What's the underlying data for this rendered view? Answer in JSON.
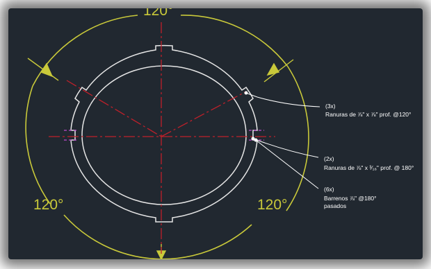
{
  "drawing": {
    "angle_labels": {
      "top": "120°",
      "left": "120°",
      "right": "120°"
    },
    "annotations": [
      {
        "count": "(3x)",
        "text": "Ranuras de ⅞\" x ⅞\" prof. @120°"
      },
      {
        "count": "(2x)",
        "text": "Ranuras de ⅞\" x ³⁄₁₆\" prof. @ 180°"
      },
      {
        "count": "(6x)",
        "text": "Barrenos ⅞\" @180°",
        "text2": "pasados"
      }
    ],
    "colors": {
      "background": "#212830",
      "outline": "#e6e6e6",
      "centerline": "#c0202a",
      "dimension": "#c9c93a",
      "hidden": "#c04ad0",
      "leader": "#ffffff"
    }
  }
}
